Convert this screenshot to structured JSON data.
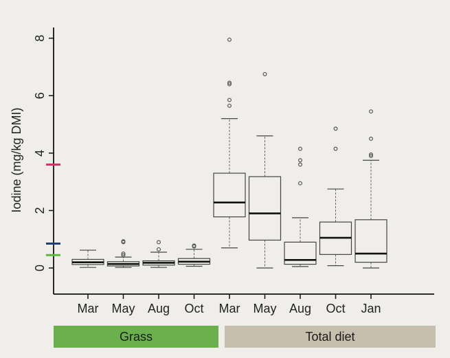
{
  "chart_data": {
    "type": "box",
    "ylabel": "Iodine (mg/kg DMI)",
    "ylim": [
      -0.9,
      8.4
    ],
    "yticks": [
      0,
      2,
      4,
      6,
      8
    ],
    "groups": [
      {
        "label": "Grass",
        "color": "#6ab04c"
      },
      {
        "label": "Total diet",
        "color": "#c7bfae"
      }
    ],
    "categories": [
      "Mar",
      "May",
      "Aug",
      "Oct",
      "Mar",
      "May",
      "Aug",
      "Oct",
      "Jan"
    ],
    "boxes": [
      {
        "label": "Mar",
        "group": 0,
        "whisker_low": 0.02,
        "q1": 0.12,
        "median": 0.2,
        "q3": 0.3,
        "whisker_high": 0.62,
        "outliers": []
      },
      {
        "label": "May",
        "group": 0,
        "whisker_low": 0.02,
        "q1": 0.07,
        "median": 0.14,
        "q3": 0.22,
        "whisker_high": 0.38,
        "outliers": [
          0.45,
          0.5,
          0.9,
          0.93
        ]
      },
      {
        "label": "Aug",
        "group": 0,
        "whisker_low": 0.02,
        "q1": 0.1,
        "median": 0.18,
        "q3": 0.25,
        "whisker_high": 0.55,
        "outliers": [
          0.65,
          0.9
        ]
      },
      {
        "label": "Oct",
        "group": 0,
        "whisker_low": 0.06,
        "q1": 0.13,
        "median": 0.22,
        "q3": 0.33,
        "whisker_high": 0.65,
        "outliers": [
          0.75,
          0.78
        ]
      },
      {
        "label": "Mar",
        "group": 1,
        "whisker_low": 0.7,
        "q1": 1.78,
        "median": 2.28,
        "q3": 3.3,
        "whisker_high": 5.2,
        "outliers": [
          5.65,
          5.85,
          6.4,
          6.45,
          7.95
        ]
      },
      {
        "label": "May",
        "group": 1,
        "whisker_low": 0.0,
        "q1": 0.97,
        "median": 1.9,
        "q3": 3.18,
        "whisker_high": 4.6,
        "outliers": [
          6.75
        ]
      },
      {
        "label": "Aug",
        "group": 1,
        "whisker_low": 0.05,
        "q1": 0.13,
        "median": 0.28,
        "q3": 0.9,
        "whisker_high": 1.75,
        "outliers": [
          2.95,
          3.6,
          3.75,
          4.15
        ]
      },
      {
        "label": "Oct",
        "group": 1,
        "whisker_low": 0.08,
        "q1": 0.47,
        "median": 1.05,
        "q3": 1.6,
        "whisker_high": 2.75,
        "outliers": [
          4.15,
          4.85
        ]
      },
      {
        "label": "Jan",
        "group": 1,
        "whisker_low": 0.0,
        "q1": 0.2,
        "median": 0.5,
        "q3": 1.68,
        "whisker_high": 3.75,
        "outliers": [
          3.9,
          3.95,
          4.5,
          5.45
        ]
      }
    ],
    "axis_markers": [
      {
        "value": 3.6,
        "color": "#d6336c"
      },
      {
        "value": 0.85,
        "color": "#1f3f7a"
      },
      {
        "value": 0.45,
        "color": "#5cb83a"
      }
    ]
  }
}
